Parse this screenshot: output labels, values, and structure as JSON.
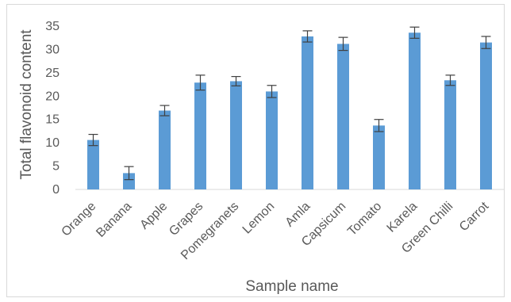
{
  "chart_data": {
    "type": "bar",
    "title": "",
    "xlabel": "Sample name",
    "ylabel": "Total flavonoid content",
    "ylim": [
      0,
      35
    ],
    "yticks": [
      0,
      5,
      10,
      15,
      20,
      25,
      30,
      35
    ],
    "grid": false,
    "legend": "none",
    "categories": [
      "Orange",
      "Banana",
      "Apple",
      "Grapes",
      "Pomegranets",
      "Lemon",
      "Amla",
      "Capsicum",
      "Tomato",
      "Karela",
      "Green Chilli",
      "Carrot"
    ],
    "values": [
      10.6,
      3.5,
      16.9,
      22.9,
      23.2,
      21.0,
      32.8,
      31.2,
      13.7,
      33.6,
      23.4,
      31.5
    ],
    "errors": [
      1.2,
      1.4,
      1.1,
      1.6,
      1.0,
      1.3,
      1.2,
      1.4,
      1.3,
      1.2,
      1.1,
      1.3
    ],
    "colors": {
      "bar": "#5b9bd5",
      "error": "#404040",
      "axis": "#d9d9d9",
      "text": "#595959"
    }
  }
}
